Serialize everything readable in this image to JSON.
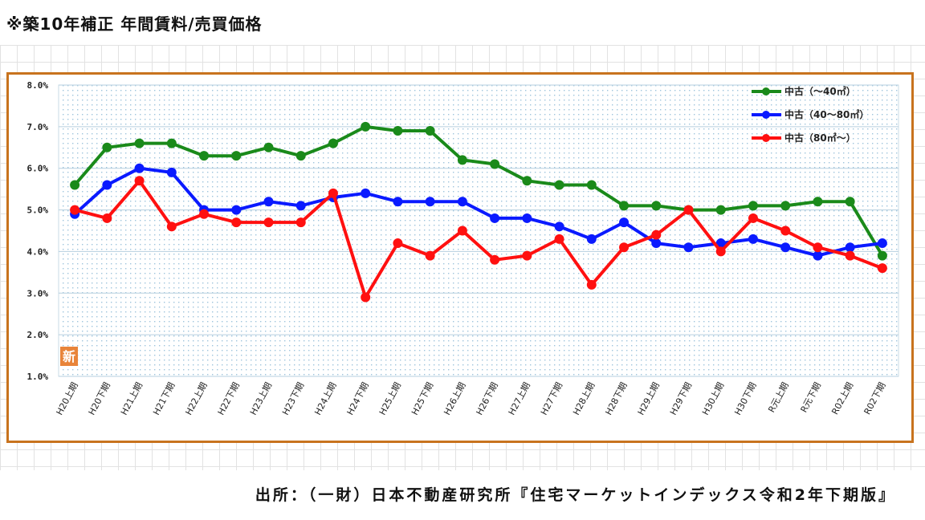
{
  "header": {
    "title": "※築10年補正 年間賃料/売買価格"
  },
  "footer": {
    "source": "出所：（一財）日本不動産研究所『住宅マーケットインデックス令和2年下期版』"
  },
  "chart_data": {
    "type": "line",
    "categories": [
      "H20上期",
      "H20下期",
      "H21上期",
      "H21下期",
      "H22上期",
      "H22下期",
      "H23上期",
      "H23下期",
      "H24上期",
      "H24下期",
      "H25上期",
      "H25下期",
      "H26上期",
      "H26下期",
      "H27上期",
      "H27下期",
      "H28上期",
      "H28下期",
      "H29上期",
      "H29下期",
      "H30上期",
      "H30下期",
      "R元上期",
      "R元下期",
      "R02上期",
      "R02下期"
    ],
    "series": [
      {
        "name": "中古（～40㎡）",
        "color": "#1a8a1a",
        "values": [
          5.6,
          6.5,
          6.6,
          6.6,
          6.3,
          6.3,
          6.5,
          6.3,
          6.6,
          7.0,
          6.9,
          6.9,
          6.2,
          6.1,
          5.7,
          5.6,
          5.6,
          5.1,
          5.1,
          5.0,
          5.0,
          5.1,
          5.1,
          5.2,
          5.2,
          3.9
        ]
      },
      {
        "name": "中古（40～80㎡）",
        "color": "#0a1aff",
        "values": [
          4.9,
          5.6,
          6.0,
          5.9,
          5.0,
          5.0,
          5.2,
          5.1,
          5.3,
          5.4,
          5.2,
          5.2,
          5.2,
          4.8,
          4.8,
          4.6,
          4.3,
          4.7,
          4.2,
          4.1,
          4.2,
          4.3,
          4.1,
          3.9,
          4.1,
          4.2
        ]
      },
      {
        "name": "中古（80㎡～）",
        "color": "#ff1010",
        "values": [
          5.0,
          4.8,
          5.7,
          4.6,
          4.9,
          4.7,
          4.7,
          4.7,
          5.4,
          2.9,
          4.2,
          3.9,
          4.5,
          3.8,
          3.9,
          4.3,
          3.2,
          4.1,
          4.4,
          5.0,
          4.0,
          4.8,
          4.5,
          4.1,
          3.9,
          3.6
        ]
      }
    ],
    "yticks": [
      "8.0%",
      "7.0%",
      "6.0%",
      "5.0%",
      "4.0%",
      "3.0%",
      "2.0%",
      "1.0%"
    ],
    "ylim": [
      1.0,
      8.0
    ],
    "grid": true,
    "legend": "top-right",
    "badge": "新",
    "badge_color": "#e8843a",
    "frame_color": "#c8731e"
  }
}
